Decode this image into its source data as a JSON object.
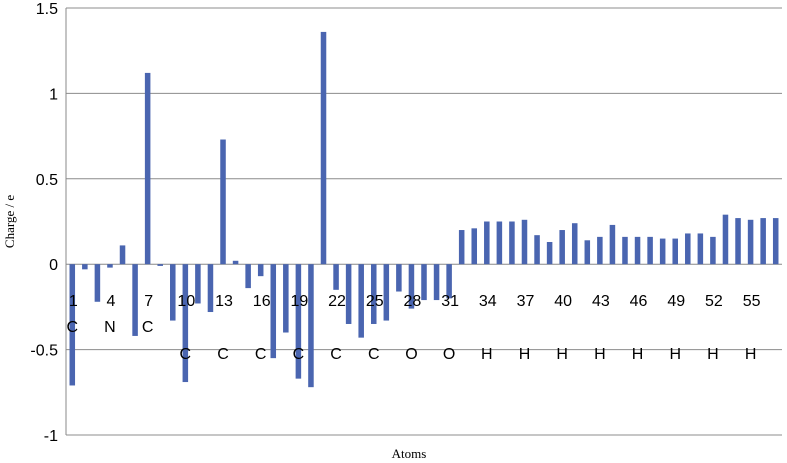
{
  "chart_data": {
    "type": "bar",
    "title": "",
    "xlabel": "Atoms",
    "ylabel": "Charge / e",
    "ylim": [
      -1,
      1.5
    ],
    "yticks": [
      -1,
      -0.5,
      0,
      0.5,
      1,
      1.5
    ],
    "ytick_labels": [
      "-1",
      "-0.5",
      "0",
      "0.5",
      "1",
      "1.5"
    ],
    "grid": true,
    "bar_color": "#4a65b0",
    "x": [
      1,
      2,
      3,
      4,
      5,
      6,
      7,
      8,
      9,
      10,
      11,
      12,
      13,
      14,
      15,
      16,
      17,
      18,
      19,
      20,
      21,
      22,
      23,
      24,
      25,
      26,
      27,
      28,
      29,
      30,
      31,
      32,
      33,
      34,
      35,
      36,
      37,
      38,
      39,
      40,
      41,
      42,
      43,
      44,
      45,
      46,
      47,
      48,
      49,
      50,
      51,
      52,
      53,
      54,
      55,
      56,
      57
    ],
    "values": [
      -0.71,
      -0.03,
      -0.22,
      -0.02,
      0.11,
      -0.42,
      1.12,
      -0.01,
      -0.33,
      -0.69,
      -0.23,
      -0.28,
      0.73,
      0.02,
      -0.14,
      -0.07,
      -0.55,
      -0.4,
      -0.67,
      -0.72,
      1.36,
      -0.15,
      -0.35,
      -0.43,
      -0.35,
      -0.33,
      -0.16,
      -0.26,
      -0.21,
      -0.21,
      -0.2,
      0.2,
      0.21,
      0.25,
      0.25,
      0.25,
      0.26,
      0.17,
      0.13,
      0.2,
      0.24,
      0.14,
      0.16,
      0.23,
      0.16,
      0.16,
      0.16,
      0.15,
      0.15,
      0.18,
      0.18,
      0.16,
      0.29,
      0.27,
      0.26,
      0.27,
      0.27
    ],
    "x_number_labels": [
      {
        "x": 1,
        "text": "1"
      },
      {
        "x": 4,
        "text": "4"
      },
      {
        "x": 7,
        "text": "7"
      },
      {
        "x": 10,
        "text": "10"
      },
      {
        "x": 13,
        "text": "13"
      },
      {
        "x": 16,
        "text": "16"
      },
      {
        "x": 19,
        "text": "19"
      },
      {
        "x": 22,
        "text": "22"
      },
      {
        "x": 25,
        "text": "25"
      },
      {
        "x": 28,
        "text": "28"
      },
      {
        "x": 31,
        "text": "31"
      },
      {
        "x": 34,
        "text": "34"
      },
      {
        "x": 37,
        "text": "37"
      },
      {
        "x": 40,
        "text": "40"
      },
      {
        "x": 43,
        "text": "43"
      },
      {
        "x": 46,
        "text": "46"
      },
      {
        "x": 49,
        "text": "49"
      },
      {
        "x": 52,
        "text": "52"
      },
      {
        "x": 55,
        "text": "55"
      }
    ],
    "x_element_labels": [
      {
        "x": 1,
        "text": "C",
        "row": 1
      },
      {
        "x": 4,
        "text": "N",
        "row": 1
      },
      {
        "x": 7,
        "text": "C",
        "row": 1
      },
      {
        "x": 10,
        "text": "C",
        "row": 2
      },
      {
        "x": 13,
        "text": "C",
        "row": 2
      },
      {
        "x": 16,
        "text": "C",
        "row": 2
      },
      {
        "x": 19,
        "text": "C",
        "row": 2
      },
      {
        "x": 22,
        "text": "C",
        "row": 2
      },
      {
        "x": 25,
        "text": "C",
        "row": 2
      },
      {
        "x": 28,
        "text": "O",
        "row": 2
      },
      {
        "x": 31,
        "text": "O",
        "row": 2
      },
      {
        "x": 34,
        "text": "H",
        "row": 2
      },
      {
        "x": 37,
        "text": "H",
        "row": 2
      },
      {
        "x": 40,
        "text": "H",
        "row": 2
      },
      {
        "x": 43,
        "text": "H",
        "row": 2
      },
      {
        "x": 46,
        "text": "H",
        "row": 2
      },
      {
        "x": 49,
        "text": "H",
        "row": 2
      },
      {
        "x": 52,
        "text": "H",
        "row": 2
      },
      {
        "x": 55,
        "text": "H",
        "row": 2
      }
    ]
  }
}
